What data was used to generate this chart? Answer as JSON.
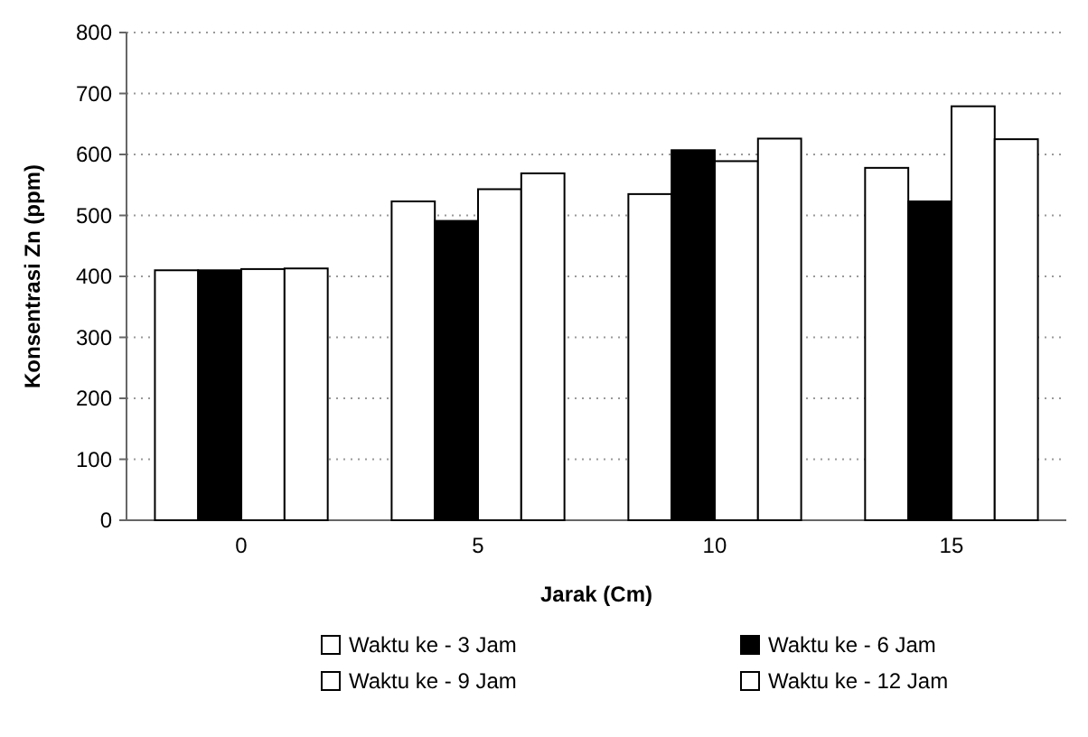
{
  "chart_data": {
    "type": "bar",
    "xlabel": "Jarak (Cm)",
    "ylabel": "Konsentrasi Zn (ppm)",
    "categories": [
      "0",
      "5",
      "10",
      "15"
    ],
    "series": [
      {
        "name": "Waktu ke - 3 Jam",
        "color": "#ffffff",
        "values": [
          410,
          523,
          535,
          578
        ]
      },
      {
        "name": "Waktu ke - 6 Jam",
        "color": "#000000",
        "values": [
          410,
          491,
          607,
          523
        ]
      },
      {
        "name": "Waktu ke - 9 Jam",
        "color": "#ffffff",
        "values": [
          412,
          543,
          589,
          679
        ]
      },
      {
        "name": "Waktu ke - 12 Jam",
        "color": "#ffffff",
        "values": [
          413,
          569,
          626,
          625
        ]
      }
    ],
    "ylim": [
      0,
      800
    ],
    "yticks": [
      0,
      100,
      200,
      300,
      400,
      500,
      600,
      700,
      800
    ],
    "grid": "y",
    "legend": "bottom"
  }
}
